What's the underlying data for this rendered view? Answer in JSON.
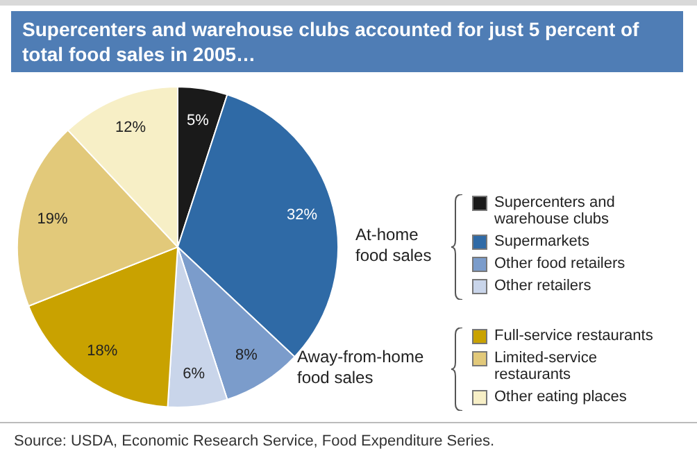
{
  "chart_data": {
    "type": "pie",
    "title": "Supercenters and warehouse clubs accounted for just 5 percent of total food sales in 2005…",
    "categories": [
      "Supercenters and warehouse clubs",
      "Supermarkets",
      "Other food retailers",
      "Other retailers",
      "Full-service restaurants",
      "Limited-service restaurants",
      "Other eating places"
    ],
    "values": [
      5,
      32,
      8,
      6,
      18,
      19,
      12
    ],
    "value_labels": [
      "5%",
      "32%",
      "8%",
      "6%",
      "18%",
      "19%",
      "12%"
    ],
    "colors": [
      "#1a1a1a",
      "#2f6aa6",
      "#7b9ccb",
      "#c9d5ea",
      "#c9a200",
      "#e2c97a",
      "#f7efc6"
    ],
    "legend": "right",
    "annotations": [
      "At-home food sales",
      "Away-from-home food sales",
      "Source:  USDA, Economic Research Service, Food Expenditure Series."
    ]
  }
}
